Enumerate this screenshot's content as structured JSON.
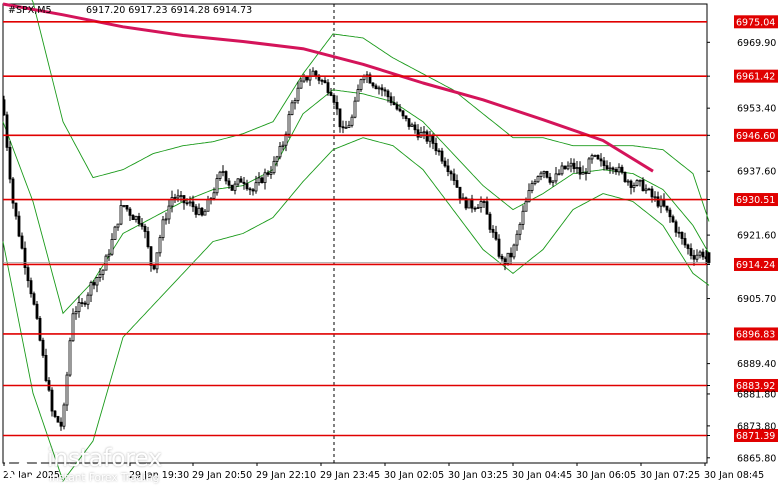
{
  "header": {
    "symbol_text": "#SPX,M5",
    "ohlc_text": "6917.20 6917.23 6914.28 6914.73"
  },
  "chart_data": {
    "type": "candlestick",
    "symbol": "#SPX",
    "timeframe": "M5",
    "ylim": [
      6864.5,
      6979.5
    ],
    "y_ticks": [
      6969.9,
      6961.42,
      6953.4,
      6946.6,
      6937.6,
      6930.51,
      6921.6,
      6914.24,
      6905.7,
      6896.83,
      6889.4,
      6883.92,
      6881.8,
      6873.8,
      6871.39,
      6865.8
    ],
    "y_tick_labels": [
      "6969.90",
      "6961.42",
      "6953.40",
      "6946.60",
      "6937.60",
      "6930.51",
      "6921.60",
      "6914.24",
      "6905.70",
      "6896.83",
      "6889.40",
      "6883.92",
      "6881.80",
      "6873.80",
      "6871.39",
      "6865.80"
    ],
    "x_tick_labels": [
      "29 Jan 2025",
      "29 Jan 19:30",
      "29 Jan 20:50",
      "29 Jan 22:10",
      "29 Jan 23:45",
      "30 Jan 02:05",
      "30 Jan 03:25",
      "30 Jan 04:45",
      "30 Jan 06:05",
      "30 Jan 07:25",
      "30 Jan 08:45"
    ],
    "levels": [
      {
        "label": "6975.04",
        "value": 6975.04
      },
      {
        "label": "6961.42",
        "value": 6961.42
      },
      {
        "label": "6946.60",
        "value": 6946.6
      },
      {
        "label": "6930.51",
        "value": 6930.51
      },
      {
        "label": "6914.24",
        "value": 6914.24
      },
      {
        "label": "6896.83",
        "value": 6896.83
      },
      {
        "label": "6883.92",
        "value": 6883.92
      },
      {
        "label": "6871.39",
        "value": 6871.39
      }
    ],
    "current_price": 6914.73,
    "last_candle": {
      "open": 6917.2,
      "high": 6917.23,
      "low": 6914.28,
      "close": 6914.73
    },
    "ma_path": [
      [
        0,
        6979.5
      ],
      [
        60,
        6976.8
      ],
      [
        120,
        6973.8
      ],
      [
        180,
        6971.6
      ],
      [
        240,
        6970.1
      ],
      [
        300,
        6968.3
      ],
      [
        360,
        6964.4
      ],
      [
        420,
        6959.7
      ],
      [
        480,
        6955.5
      ],
      [
        540,
        6950.5
      ],
      [
        600,
        6945.3
      ],
      [
        650,
        6937.6
      ]
    ],
    "candle_keypoints": [
      [
        0,
        6955.5
      ],
      [
        10,
        6930.5
      ],
      [
        20,
        6917.5
      ],
      [
        30,
        6906.0
      ],
      [
        40,
        6891.5
      ],
      [
        50,
        6876.5
      ],
      [
        60,
        6873.5
      ],
      [
        70,
        6902.5
      ],
      [
        80,
        6904.0
      ],
      [
        90,
        6910.0
      ],
      [
        100,
        6912.5
      ],
      [
        110,
        6920.5
      ],
      [
        120,
        6929.5
      ],
      [
        130,
        6926.5
      ],
      [
        140,
        6925.0
      ],
      [
        150,
        6912.5
      ],
      [
        160,
        6924.0
      ],
      [
        170,
        6931.5
      ],
      [
        180,
        6930.0
      ],
      [
        190,
        6929.0
      ],
      [
        200,
        6926.0
      ],
      [
        210,
        6932.0
      ],
      [
        220,
        6938.0
      ],
      [
        230,
        6933.0
      ],
      [
        240,
        6936.0
      ],
      [
        250,
        6932.5
      ],
      [
        260,
        6936.0
      ],
      [
        270,
        6938.5
      ],
      [
        280,
        6944.0
      ],
      [
        290,
        6955.0
      ],
      [
        300,
        6960.0
      ],
      [
        310,
        6962.5
      ],
      [
        320,
        6960.0
      ],
      [
        330,
        6957.5
      ],
      [
        340,
        6947.0
      ],
      [
        350,
        6951.0
      ],
      [
        360,
        6963.0
      ],
      [
        370,
        6960.0
      ],
      [
        380,
        6958.0
      ],
      [
        390,
        6955.0
      ],
      [
        400,
        6951.0
      ],
      [
        410,
        6948.5
      ],
      [
        420,
        6946.5
      ],
      [
        430,
        6945.0
      ],
      [
        440,
        6941.0
      ],
      [
        450,
        6937.0
      ],
      [
        460,
        6930.0
      ],
      [
        470,
        6929.0
      ],
      [
        480,
        6930.0
      ],
      [
        490,
        6922.0
      ],
      [
        500,
        6914.5
      ],
      [
        510,
        6917.0
      ],
      [
        520,
        6926.5
      ],
      [
        530,
        6935.0
      ],
      [
        540,
        6938.5
      ],
      [
        550,
        6935.0
      ],
      [
        560,
        6938.0
      ],
      [
        570,
        6939.0
      ],
      [
        580,
        6936.5
      ],
      [
        590,
        6941.0
      ],
      [
        600,
        6939.0
      ],
      [
        610,
        6939.5
      ],
      [
        620,
        6936.5
      ],
      [
        630,
        6934.5
      ],
      [
        640,
        6934.0
      ],
      [
        650,
        6931.0
      ],
      [
        660,
        6929.0
      ],
      [
        670,
        6925.0
      ],
      [
        680,
        6920.0
      ],
      [
        690,
        6916.5
      ],
      [
        700,
        6917.2
      ],
      [
        706,
        6914.73
      ]
    ],
    "bollinger": {
      "upper": [
        [
          0,
          6995
        ],
        [
          30,
          6980
        ],
        [
          60,
          6950
        ],
        [
          90,
          6936
        ],
        [
          120,
          6938
        ],
        [
          150,
          6942
        ],
        [
          180,
          6944
        ],
        [
          210,
          6945
        ],
        [
          240,
          6947
        ],
        [
          270,
          6950
        ],
        [
          300,
          6962
        ],
        [
          330,
          6972
        ],
        [
          360,
          6971
        ],
        [
          390,
          6966
        ],
        [
          420,
          6962
        ],
        [
          450,
          6958
        ],
        [
          480,
          6952
        ],
        [
          510,
          6946
        ],
        [
          540,
          6946
        ],
        [
          570,
          6944
        ],
        [
          600,
          6944
        ],
        [
          630,
          6944
        ],
        [
          660,
          6943
        ],
        [
          690,
          6937
        ],
        [
          706,
          6925
        ]
      ],
      "middle": [
        [
          0,
          6950
        ],
        [
          30,
          6930
        ],
        [
          60,
          6902
        ],
        [
          90,
          6910
        ],
        [
          120,
          6922
        ],
        [
          150,
          6926
        ],
        [
          180,
          6930
        ],
        [
          210,
          6933
        ],
        [
          240,
          6934
        ],
        [
          270,
          6938
        ],
        [
          300,
          6952
        ],
        [
          330,
          6958
        ],
        [
          360,
          6957
        ],
        [
          390,
          6955
        ],
        [
          420,
          6950
        ],
        [
          450,
          6942
        ],
        [
          480,
          6934
        ],
        [
          510,
          6928
        ],
        [
          540,
          6932
        ],
        [
          570,
          6937
        ],
        [
          600,
          6938
        ],
        [
          630,
          6937
        ],
        [
          660,
          6933
        ],
        [
          690,
          6924
        ],
        [
          706,
          6917
        ]
      ],
      "lower": [
        [
          0,
          6920
        ],
        [
          30,
          6882
        ],
        [
          60,
          6860
        ],
        [
          90,
          6870
        ],
        [
          120,
          6896
        ],
        [
          150,
          6904
        ],
        [
          180,
          6912
        ],
        [
          210,
          6920
        ],
        [
          240,
          6922
        ],
        [
          270,
          6926
        ],
        [
          300,
          6935
        ],
        [
          330,
          6943
        ],
        [
          360,
          6946
        ],
        [
          390,
          6944
        ],
        [
          420,
          6938
        ],
        [
          450,
          6928
        ],
        [
          480,
          6918
        ],
        [
          510,
          6912
        ],
        [
          540,
          6918
        ],
        [
          570,
          6928
        ],
        [
          600,
          6932
        ],
        [
          630,
          6930
        ],
        [
          660,
          6924
        ],
        [
          690,
          6912
        ],
        [
          706,
          6909
        ]
      ]
    }
  },
  "logo": {
    "name": "instaforex",
    "tagline": "Instant Forex Trading"
  },
  "colors": {
    "level_line": "#e00000",
    "ma_line": "#d4145a",
    "bollinger": "#1a9a1a",
    "candle": "#000000",
    "background": "#ffffff",
    "price_box": "#000000"
  }
}
